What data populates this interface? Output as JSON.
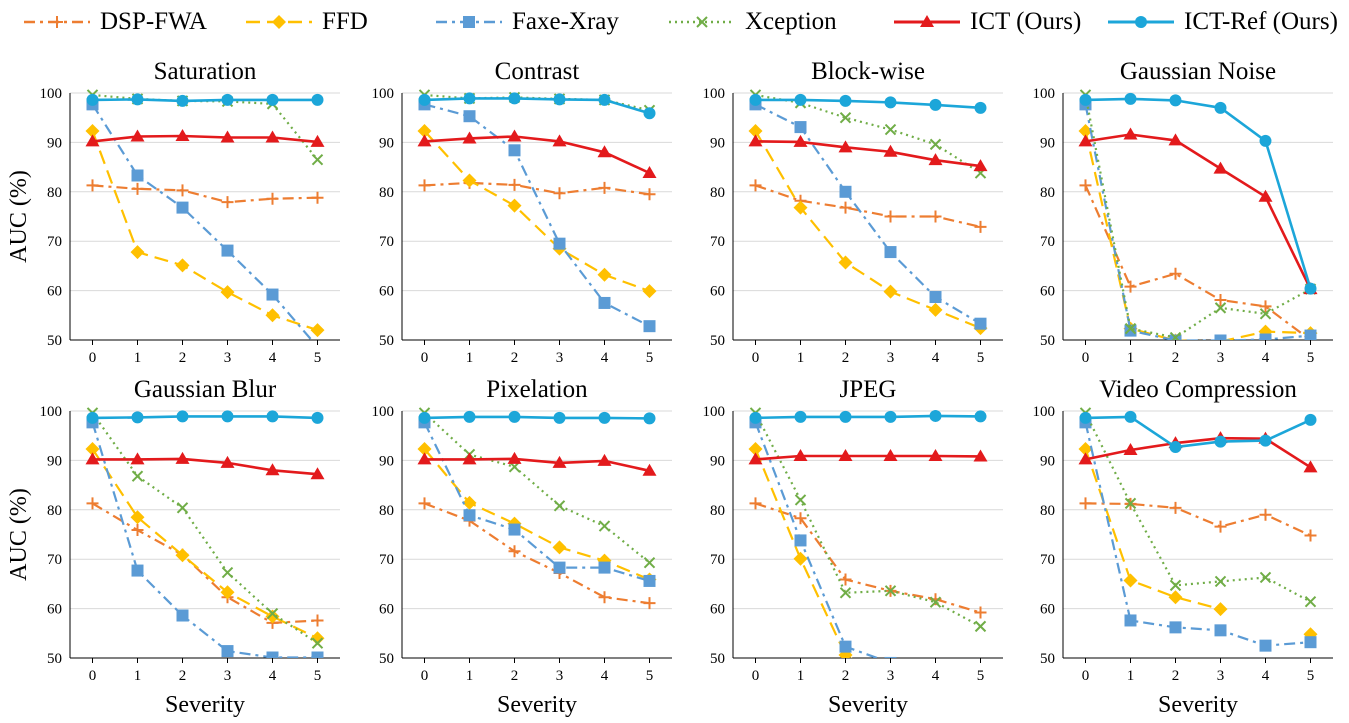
{
  "chart_data": {
    "type": "line",
    "legend_position": "top",
    "grid": "horizontal",
    "legend": [
      {
        "key": "dsp",
        "label": "DSP-FWA",
        "color": "#ED7D31",
        "dash": "dashdot",
        "marker": "plus"
      },
      {
        "key": "ffd",
        "label": "FFD",
        "color": "#FFC000",
        "dash": "longdash",
        "marker": "diamond"
      },
      {
        "key": "faxe",
        "label": "Faxe-Xray",
        "color": "#5B9BD5",
        "dash": "dashdot",
        "marker": "square"
      },
      {
        "key": "xcep",
        "label": "Xception",
        "color": "#70AD47",
        "dash": "dotted",
        "marker": "cross"
      },
      {
        "key": "ict",
        "label": "ICT (Ours)",
        "color": "#E31A1C",
        "dash": "solid",
        "marker": "triangle"
      },
      {
        "key": "ictref",
        "label": "ICT-Ref (Ours)",
        "color": "#1CA6D9",
        "dash": "solid",
        "marker": "circle"
      }
    ],
    "x_ticks": [
      "0",
      "1",
      "2",
      "3",
      "4",
      "5"
    ],
    "y_ticks": [
      "50",
      "60",
      "70",
      "80",
      "90",
      "100"
    ],
    "ylim": [
      50,
      100
    ],
    "panels": [
      {
        "title": "Saturation",
        "ylabel": "AUC (%)",
        "xlabel": "",
        "series": {
          "dsp": [
            81.3,
            80.6,
            80.3,
            77.9,
            78.6,
            78.8
          ],
          "ffd": [
            92.3,
            67.8,
            65.1,
            59.7,
            55.0,
            52.0
          ],
          "faxe": [
            97.7,
            83.3,
            76.8,
            68.1,
            59.2,
            48.6
          ],
          "xcep": [
            99.6,
            98.8,
            98.4,
            98.3,
            97.8,
            86.5
          ],
          "ict": [
            90.2,
            91.2,
            91.3,
            91.0,
            91.0,
            90.1
          ],
          "ictref": [
            98.6,
            98.7,
            98.4,
            98.6,
            98.6,
            98.6
          ]
        }
      },
      {
        "title": "Contrast",
        "ylabel": "",
        "xlabel": "",
        "series": {
          "dsp": [
            81.3,
            81.8,
            81.4,
            79.7,
            80.8,
            79.5
          ],
          "ffd": [
            92.3,
            82.3,
            77.2,
            68.5,
            63.2,
            59.9
          ],
          "faxe": [
            97.7,
            95.3,
            88.4,
            69.5,
            57.5,
            52.8
          ],
          "xcep": [
            99.6,
            98.9,
            99.1,
            98.8,
            98.6,
            96.5
          ],
          "ict": [
            90.2,
            90.8,
            91.2,
            90.2,
            88.0,
            83.8
          ],
          "ictref": [
            98.6,
            98.9,
            98.9,
            98.7,
            98.6,
            95.9
          ]
        }
      },
      {
        "title": "Block-wise",
        "ylabel": "",
        "xlabel": "",
        "series": {
          "dsp": [
            81.3,
            78.2,
            76.8,
            75.0,
            75.0,
            72.9
          ],
          "ffd": [
            92.3,
            76.8,
            65.7,
            59.8,
            56.1,
            52.4
          ],
          "faxe": [
            97.7,
            93.1,
            80.0,
            67.8,
            58.7,
            53.3
          ],
          "xcep": [
            99.6,
            98.0,
            95.0,
            92.6,
            89.6,
            83.8
          ],
          "ict": [
            90.2,
            90.1,
            89.0,
            88.1,
            86.4,
            85.2
          ],
          "ictref": [
            98.6,
            98.6,
            98.4,
            98.1,
            97.6,
            97.0
          ]
        }
      },
      {
        "title": "Gaussian Noise",
        "ylabel": "",
        "xlabel": "",
        "series": {
          "dsp": [
            81.3,
            60.8,
            63.4,
            58.1,
            56.8,
            50.0
          ],
          "ffd": [
            92.3,
            52.3,
            49.9,
            49.7,
            51.7,
            51.4
          ],
          "faxe": [
            97.7,
            51.9,
            49.9,
            49.9,
            50.1,
            50.9
          ],
          "xcep": [
            99.6,
            52.3,
            50.5,
            56.5,
            55.3,
            60.3
          ],
          "ict": [
            90.2,
            91.6,
            90.4,
            84.7,
            79.0,
            60.3
          ],
          "ictref": [
            98.6,
            98.8,
            98.5,
            97.0,
            90.3,
            60.4
          ]
        }
      },
      {
        "title": "Gaussian Blur",
        "ylabel": "AUC (%)",
        "xlabel": "Severity",
        "series": {
          "dsp": [
            81.3,
            75.9,
            70.9,
            62.3,
            57.1,
            57.6
          ],
          "ffd": [
            92.3,
            78.5,
            70.8,
            63.3,
            58.4,
            54.0
          ],
          "faxe": [
            97.7,
            67.7,
            58.6,
            51.4,
            50.1,
            50.1
          ],
          "xcep": [
            99.6,
            86.8,
            80.4,
            67.3,
            59.0,
            53.0
          ],
          "ict": [
            90.2,
            90.2,
            90.3,
            89.5,
            88.0,
            87.2
          ],
          "ictref": [
            98.6,
            98.7,
            98.9,
            98.9,
            98.9,
            98.6
          ]
        }
      },
      {
        "title": "Pixelation",
        "ylabel": "",
        "xlabel": "Severity",
        "series": {
          "dsp": [
            81.3,
            77.8,
            71.6,
            67.2,
            62.3,
            61.1
          ],
          "ffd": [
            92.3,
            81.4,
            77.2,
            72.4,
            69.7,
            65.9
          ],
          "faxe": [
            97.7,
            78.9,
            76.0,
            68.3,
            68.3,
            65.6
          ],
          "xcep": [
            99.6,
            91.2,
            88.7,
            80.8,
            76.7,
            69.3
          ],
          "ict": [
            90.2,
            90.2,
            90.3,
            89.5,
            89.9,
            87.9
          ],
          "ictref": [
            98.6,
            98.8,
            98.8,
            98.6,
            98.6,
            98.5
          ]
        }
      },
      {
        "title": "JPEG",
        "ylabel": "",
        "xlabel": "Severity",
        "series": {
          "dsp": [
            81.3,
            78.3,
            65.9,
            63.6,
            61.9,
            59.2
          ],
          "ffd": [
            92.3,
            70.1,
            50.6,
            45.0,
            45.0,
            45.0
          ],
          "faxe": [
            97.7,
            73.8,
            52.3,
            49.0,
            48.0,
            47.0
          ],
          "xcep": [
            99.6,
            82.0,
            63.2,
            63.6,
            61.3,
            56.4
          ],
          "ict": [
            90.2,
            90.9,
            90.9,
            90.9,
            90.9,
            90.8
          ],
          "ictref": [
            98.6,
            98.8,
            98.8,
            98.8,
            99.0,
            98.9
          ]
        }
      },
      {
        "title": "Video Compression",
        "ylabel": "",
        "xlabel": "Severity",
        "series": {
          "dsp": [
            81.3,
            81.2,
            80.4,
            76.6,
            79.0,
            74.8
          ],
          "ffd": [
            92.3,
            65.7,
            62.3,
            59.9,
            null,
            54.8
          ],
          "faxe": [
            97.7,
            57.6,
            56.2,
            55.6,
            52.5,
            53.2
          ],
          "xcep": [
            99.6,
            81.3,
            64.7,
            65.5,
            66.3,
            61.4
          ],
          "ict": [
            90.2,
            92.1,
            93.5,
            94.5,
            94.4,
            88.6
          ],
          "ictref": [
            98.6,
            98.8,
            92.7,
            93.8,
            94.0,
            98.2
          ]
        }
      }
    ]
  }
}
